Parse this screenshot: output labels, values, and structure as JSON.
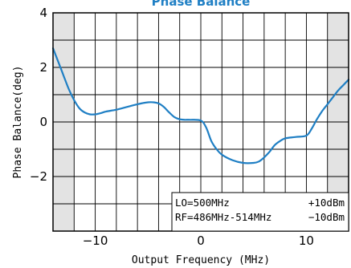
{
  "chart_data": {
    "type": "line",
    "title": "Phase Balance",
    "xlabel": "Output Frequency (MHz)",
    "ylabel": "Phase Balance(deg)",
    "xlim": [
      -14,
      14
    ],
    "ylim": [
      -4,
      4
    ],
    "x_ticks": [
      -10,
      0,
      10
    ],
    "x_tick_labels": [
      "−10",
      "0",
      "10"
    ],
    "y_ticks": [
      4,
      2,
      0,
      -2
    ],
    "y_tick_labels": [
      "4",
      "2",
      "0",
      "−2"
    ],
    "grid": true,
    "shaded_ranges": [
      [
        -14,
        -12
      ],
      [
        12,
        14
      ]
    ],
    "legend_box": {
      "placement": "bottom-right",
      "lines": [
        {
          "label": "LO=500MHz",
          "value": "+10dBm"
        },
        {
          "label": "RF=486MHz-514MHz",
          "value": "−10dBm"
        }
      ]
    },
    "series": [
      {
        "color": "#1f7fc4",
        "x": [
          -14,
          -13.5,
          -13,
          -12.5,
          -12,
          -11.5,
          -11,
          -10.5,
          -10,
          -9.5,
          -9,
          -8,
          -7,
          -6,
          -5,
          -4.5,
          -4,
          -3.5,
          -3,
          -2.5,
          -2,
          -1.5,
          -1,
          0,
          0.5,
          1,
          1.5,
          2,
          3,
          4,
          5,
          5.5,
          6,
          6.5,
          7,
          7.5,
          8,
          9,
          10,
          10.5,
          11,
          11.5,
          12,
          12.5,
          13,
          13.5,
          14
        ],
        "y": [
          2.7,
          2.2,
          1.7,
          1.2,
          0.8,
          0.5,
          0.35,
          0.28,
          0.28,
          0.32,
          0.38,
          0.45,
          0.55,
          0.65,
          0.72,
          0.72,
          0.68,
          0.55,
          0.35,
          0.18,
          0.1,
          0.08,
          0.08,
          0.05,
          -0.2,
          -0.7,
          -1.0,
          -1.2,
          -1.4,
          -1.5,
          -1.5,
          -1.45,
          -1.3,
          -1.1,
          -0.85,
          -0.7,
          -0.6,
          -0.55,
          -0.5,
          -0.25,
          0.1,
          0.4,
          0.65,
          0.9,
          1.15,
          1.35,
          1.55
        ]
      }
    ]
  }
}
